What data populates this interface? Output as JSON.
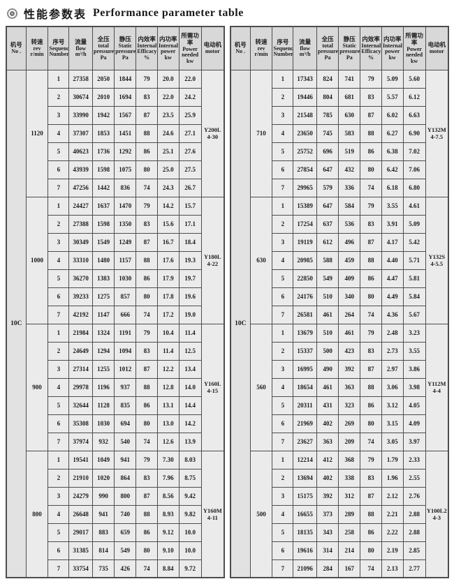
{
  "title": {
    "icon": "double-circle-icon",
    "zh": "性能参数表",
    "en": "Performance parameter table"
  },
  "colors": {
    "header_bg": "#d8d8d8",
    "body_bg": "#ebebeb",
    "border": "#4d4d4d",
    "text": "#1a1a1a"
  },
  "columns": [
    {
      "zh": "机号",
      "en": "No ."
    },
    {
      "zh": "转速",
      "en": "rev r/min"
    },
    {
      "zh": "序号",
      "en": "Sequence Number"
    },
    {
      "zh": "流量",
      "en": "flow m³/h"
    },
    {
      "zh": "全压",
      "en": "total pressure Pa"
    },
    {
      "zh": "静压",
      "en": "Static pressure Pa"
    },
    {
      "zh": "内效率",
      "en": "Internal Efficacy %"
    },
    {
      "zh": "内功率",
      "en": "Internal power kw"
    },
    {
      "zh": "所需功率",
      "en": "Power needed kw"
    },
    {
      "zh": "电动机",
      "en": "motor"
    }
  ],
  "tables": [
    {
      "machine_no": "10C",
      "groups": [
        {
          "speed": "1120",
          "motor_model": "Y200L",
          "motor_spec": "4-30",
          "rows": [
            [
              "1",
              "27358",
              "2050",
              "1844",
              "79",
              "20.0",
              "22.0"
            ],
            [
              "2",
              "30674",
              "2010",
              "1694",
              "83",
              "22.0",
              "24.2"
            ],
            [
              "3",
              "33990",
              "1942",
              "1567",
              "87",
              "23.5",
              "25.9"
            ],
            [
              "4",
              "37307",
              "1853",
              "1451",
              "88",
              "24.6",
              "27.1"
            ],
            [
              "5",
              "40623",
              "1736",
              "1292",
              "86",
              "25.1",
              "27.6"
            ],
            [
              "6",
              "43939",
              "1598",
              "1075",
              "80",
              "25.0",
              "27.5"
            ],
            [
              "7",
              "47256",
              "1442",
              "836",
              "74",
              "24.3",
              "26.7"
            ]
          ]
        },
        {
          "speed": "1000",
          "motor_model": "Y180L",
          "motor_spec": "4-22",
          "rows": [
            [
              "1",
              "24427",
              "1637",
              "1470",
              "79",
              "14.2",
              "15.7"
            ],
            [
              "2",
              "27388",
              "1598",
              "1350",
              "83",
              "15.6",
              "17.1"
            ],
            [
              "3",
              "30349",
              "1549",
              "1249",
              "87",
              "16.7",
              "18.4"
            ],
            [
              "4",
              "33310",
              "1480",
              "1157",
              "88",
              "17.6",
              "19.3"
            ],
            [
              "5",
              "36270",
              "1383",
              "1030",
              "86",
              "17.9",
              "19.7"
            ],
            [
              "6",
              "39233",
              "1275",
              "857",
              "80",
              "17.8",
              "19.6"
            ],
            [
              "7",
              "42192",
              "1147",
              "666",
              "74",
              "17.2",
              "19.0"
            ]
          ]
        },
        {
          "speed": "900",
          "motor_model": "Y160L",
          "motor_spec": "4-15",
          "rows": [
            [
              "1",
              "21984",
              "1324",
              "1191",
              "79",
              "10.4",
              "11.4"
            ],
            [
              "2",
              "24649",
              "1294",
              "1094",
              "83",
              "11.4",
              "12.5"
            ],
            [
              "3",
              "27314",
              "1255",
              "1012",
              "87",
              "12.2",
              "13.4"
            ],
            [
              "4",
              "29978",
              "1196",
              "937",
              "88",
              "12.8",
              "14.0"
            ],
            [
              "5",
              "32644",
              "1128",
              "835",
              "86",
              "13.1",
              "14.4"
            ],
            [
              "6",
              "35308",
              "1030",
              "694",
              "80",
              "13.0",
              "14.2"
            ],
            [
              "7",
              "37974",
              "932",
              "540",
              "74",
              "12.6",
              "13.9"
            ]
          ]
        },
        {
          "speed": "800",
          "motor_model": "Y160M",
          "motor_spec": "4-11",
          "rows": [
            [
              "1",
              "19541",
              "1049",
              "941",
              "79",
              "7.30",
              "8.03"
            ],
            [
              "2",
              "21910",
              "1020",
              "864",
              "83",
              "7.96",
              "8.75"
            ],
            [
              "3",
              "24279",
              "990",
              "800",
              "87",
              "8.56",
              "9.42"
            ],
            [
              "4",
              "26648",
              "941",
              "740",
              "88",
              "8.93",
              "9.82"
            ],
            [
              "5",
              "29017",
              "883",
              "659",
              "86",
              "9.12",
              "10.0"
            ],
            [
              "6",
              "31385",
              "814",
              "549",
              "80",
              "9.10",
              "10.0"
            ],
            [
              "7",
              "33754",
              "735",
              "426",
              "74",
              "8.84",
              "9.72"
            ]
          ]
        }
      ]
    },
    {
      "machine_no": "10C",
      "groups": [
        {
          "speed": "710",
          "motor_model": "Y132M",
          "motor_spec": "4-7.5",
          "rows": [
            [
              "1",
              "17343",
              "824",
              "741",
              "79",
              "5.09",
              "5.60"
            ],
            [
              "2",
              "19446",
              "804",
              "681",
              "83",
              "5.57",
              "6.12"
            ],
            [
              "3",
              "21548",
              "785",
              "630",
              "87",
              "6.02",
              "6.63"
            ],
            [
              "4",
              "23650",
              "745",
              "583",
              "88",
              "6.27",
              "6.90"
            ],
            [
              "5",
              "25752",
              "696",
              "519",
              "86",
              "6.38",
              "7.02"
            ],
            [
              "6",
              "27854",
              "647",
              "432",
              "80",
              "6.42",
              "7.06"
            ],
            [
              "7",
              "29965",
              "579",
              "336",
              "74",
              "6.18",
              "6.80"
            ]
          ]
        },
        {
          "speed": "630",
          "motor_model": "Y132S",
          "motor_spec": "4-5.5",
          "rows": [
            [
              "1",
              "15389",
              "647",
              "584",
              "79",
              "3.55",
              "4.61"
            ],
            [
              "2",
              "17254",
              "637",
              "536",
              "83",
              "3.91",
              "5.09"
            ],
            [
              "3",
              "19119",
              "612",
              "496",
              "87",
              "4.17",
              "5.42"
            ],
            [
              "4",
              "20985",
              "588",
              "459",
              "88",
              "4.40",
              "5.71"
            ],
            [
              "5",
              "22850",
              "549",
              "409",
              "86",
              "4.47",
              "5.81"
            ],
            [
              "6",
              "24176",
              "510",
              "340",
              "80",
              "4.49",
              "5.84"
            ],
            [
              "7",
              "26581",
              "461",
              "264",
              "74",
              "4.36",
              "5.67"
            ]
          ]
        },
        {
          "speed": "560",
          "motor_model": "Y112M",
          "motor_spec": "4-4",
          "rows": [
            [
              "1",
              "13679",
              "510",
              "461",
              "79",
              "2.48",
              "3.23"
            ],
            [
              "2",
              "15337",
              "500",
              "423",
              "83",
              "2.73",
              "3.55"
            ],
            [
              "3",
              "16995",
              "490",
              "392",
              "87",
              "2.97",
              "3.86"
            ],
            [
              "4",
              "18654",
              "461",
              "363",
              "88",
              "3.06",
              "3.98"
            ],
            [
              "5",
              "20311",
              "431",
              "323",
              "86",
              "3.12",
              "4.05"
            ],
            [
              "6",
              "21969",
              "402",
              "269",
              "80",
              "3.15",
              "4.09"
            ],
            [
              "7",
              "23627",
              "363",
              "209",
              "74",
              "3.05",
              "3.97"
            ]
          ]
        },
        {
          "speed": "500",
          "motor_model": "Y100L2",
          "motor_spec": "4-3",
          "rows": [
            [
              "1",
              "12214",
              "412",
              "368",
              "79",
              "1.79",
              "2.33"
            ],
            [
              "2",
              "13694",
              "402",
              "338",
              "83",
              "1.96",
              "2.55"
            ],
            [
              "3",
              "15175",
              "392",
              "312",
              "87",
              "2.12",
              "2.76"
            ],
            [
              "4",
              "16655",
              "373",
              "289",
              "88",
              "2.21",
              "2.88"
            ],
            [
              "5",
              "18135",
              "343",
              "258",
              "86",
              "2.22",
              "2.88"
            ],
            [
              "6",
              "19616",
              "314",
              "214",
              "80",
              "2.19",
              "2.85"
            ],
            [
              "7",
              "21096",
              "284",
              "167",
              "74",
              "2.13",
              "2.77"
            ]
          ]
        }
      ]
    }
  ]
}
